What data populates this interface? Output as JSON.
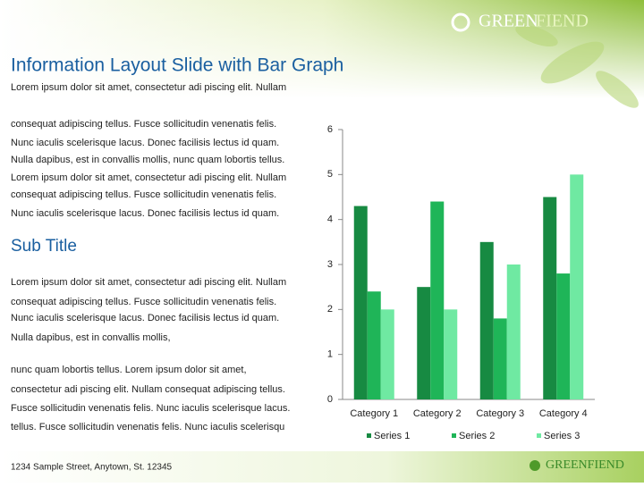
{
  "brand": {
    "first": "GREEN",
    "second": "FIEND"
  },
  "title": "Information Layout Slide with Bar Graph",
  "intro_lines": [
    "Lorem ipsum dolor sit amet, consectetur adi piscing elit. Nullam",
    "consequat adipiscing tellus. Fusce sollicitudin venenatis felis.",
    "Nunc iaculis scelerisque lacus. Donec facilisis lectus id quam.",
    "Nulla dapibus, est in convallis mollis, nunc quam lobortis tellus.",
    "Lorem ipsum dolor sit amet, consectetur adi piscing elit. Nullam",
    "consequat adipiscing tellus. Fusce sollicitudin venenatis felis.",
    "Nunc iaculis scelerisque lacus. Donec facilisis lectus id quam."
  ],
  "subtitle": "Sub Title",
  "sub_lines": [
    "Lorem ipsum dolor sit amet, consectetur adi piscing elit. Nullam",
    "consequat adipiscing tellus. Fusce sollicitudin venenatis felis.",
    "Nunc iaculis scelerisque lacus. Donec facilisis lectus id quam.",
    "Nulla dapibus, est in convallis mollis,",
    "nunc quam lobortis tellus. Lorem ipsum dolor sit amet,",
    "consectetur adi piscing elit. Nullam consequat adipiscing tellus.",
    "Fusce sollicitudin venenatis felis. Nunc iaculis scelerisque lacus.",
    "tellus. Fusce sollicitudin venenatis felis. Nunc iaculis scelerisqu"
  ],
  "footer": {
    "address": "1234 Sample Street, Anytown, St. 12345",
    "logo": "GREENFIEND"
  },
  "chart_data": {
    "type": "bar",
    "categories": [
      "Category 1",
      "Category 2",
      "Category 3",
      "Category 4"
    ],
    "series": [
      {
        "name": "Series 1",
        "color": "#178a42",
        "values": [
          4.3,
          2.5,
          3.5,
          4.5
        ]
      },
      {
        "name": "Series 2",
        "color": "#1fb558",
        "values": [
          2.4,
          4.4,
          1.8,
          2.8
        ]
      },
      {
        "name": "Series 3",
        "color": "#6fe9a2",
        "values": [
          2,
          2,
          3,
          5
        ]
      }
    ],
    "ylim": [
      0,
      6
    ],
    "yticks": [
      0,
      1,
      2,
      3,
      4,
      5,
      6
    ],
    "grid": false,
    "legend": "bottom"
  }
}
